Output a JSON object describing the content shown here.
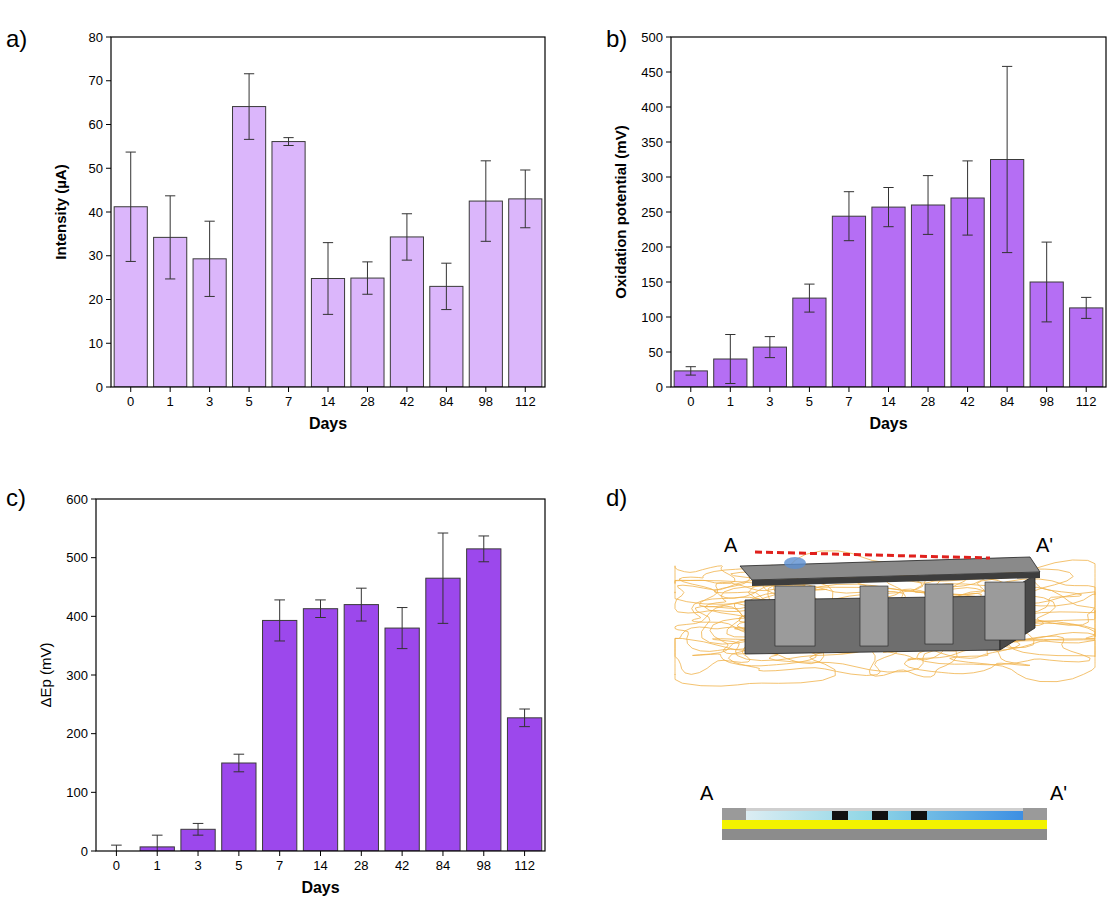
{
  "panel_labels": [
    "a)",
    "b)",
    "c)",
    "d)"
  ],
  "chart_data": [
    {
      "type": "bar",
      "categories": [
        "0",
        "1",
        "3",
        "5",
        "7",
        "14",
        "28",
        "42",
        "84",
        "98",
        "112"
      ],
      "values": [
        41.2,
        34.2,
        29.3,
        64.1,
        56.1,
        24.8,
        24.9,
        34.3,
        23.0,
        42.5,
        43.0
      ],
      "errors": [
        12.5,
        9.5,
        8.6,
        7.5,
        0.9,
        8.2,
        3.7,
        5.3,
        5.3,
        9.2,
        6.6
      ],
      "color": "#dbb6fb",
      "ylim": [
        0,
        80
      ],
      "yticks": [
        0,
        10,
        20,
        30,
        40,
        50,
        60,
        70,
        80
      ],
      "x_label": "Days",
      "y_label": "Intensity (µA)"
    },
    {
      "type": "bar",
      "categories": [
        "0",
        "1",
        "3",
        "5",
        "7",
        "14",
        "28",
        "42",
        "84",
        "98",
        "112"
      ],
      "values": [
        23,
        40,
        57,
        127,
        244,
        257,
        260,
        270,
        325,
        150,
        113
      ],
      "errors": [
        6,
        35,
        15,
        20,
        35,
        28,
        42,
        53,
        133,
        57,
        15
      ],
      "color": "#b56ef4",
      "ylim": [
        0,
        500
      ],
      "yticks": [
        0,
        50,
        100,
        150,
        200,
        250,
        300,
        350,
        400,
        450,
        500
      ],
      "x_label": "Days",
      "y_label": "Oxidation potential (mV)"
    },
    {
      "type": "bar",
      "categories": [
        "0",
        "1",
        "3",
        "5",
        "7",
        "14",
        "28",
        "42",
        "84",
        "98",
        "112"
      ],
      "values": [
        0,
        7,
        37,
        150,
        393,
        413,
        420,
        380,
        465,
        515,
        227
      ],
      "errors": [
        10,
        20,
        10,
        15,
        35,
        15,
        28,
        35,
        77,
        22,
        15
      ],
      "color": "#9c48ec",
      "ylim": [
        0,
        600
      ],
      "yticks": [
        0,
        100,
        200,
        300,
        400,
        500,
        600
      ],
      "x_label": "Days",
      "y_label": "ΔEp (mV)"
    }
  ],
  "diagram": {
    "top_view": {
      "start_label": "A",
      "end_label": "A'"
    },
    "cross_section": {
      "start_label": "A",
      "end_label": "A'"
    }
  }
}
